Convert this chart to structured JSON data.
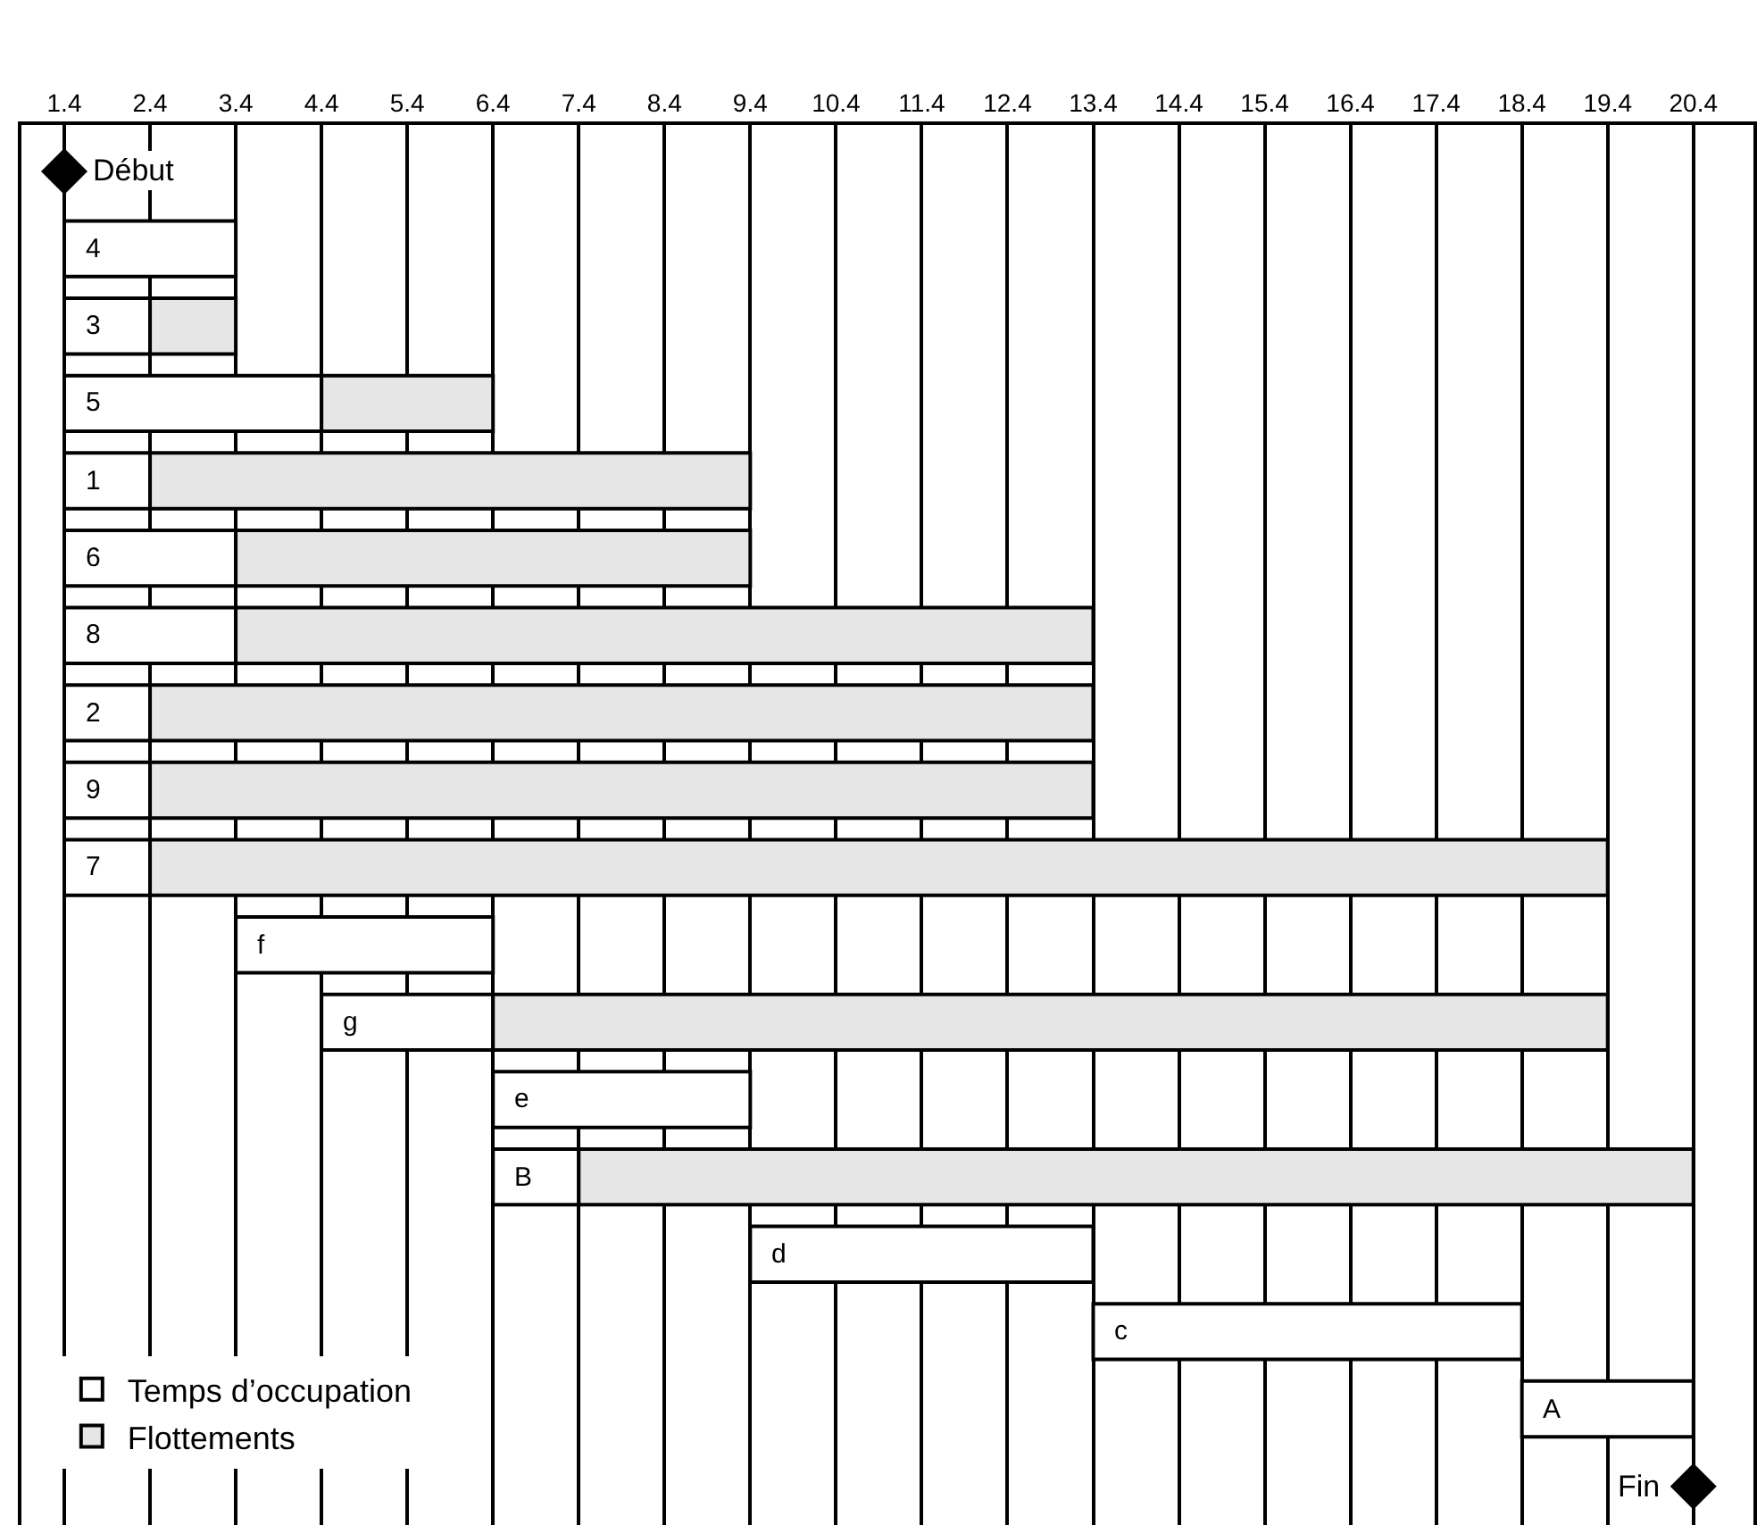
{
  "chart_data": {
    "type": "bar",
    "orientation": "horizontal",
    "categories": [
      "Début",
      "4",
      "3",
      "5",
      "1",
      "6",
      "8",
      "2",
      "9",
      "7",
      "f",
      "g",
      "e",
      "B",
      "d",
      "c",
      "A",
      "Fin"
    ],
    "series": [
      {
        "name": "Temps d’occupation",
        "color": "#ffffff",
        "base": [
          null,
          1.4,
          1.4,
          1.4,
          1.4,
          1.4,
          1.4,
          1.4,
          1.4,
          1.4,
          3.4,
          4.4,
          6.4,
          6.4,
          9.4,
          13.4,
          18.4,
          null
        ],
        "values": [
          null,
          2,
          1,
          3,
          1,
          2,
          2,
          1,
          1,
          1,
          3,
          2,
          3,
          1,
          4,
          5,
          2,
          null
        ]
      },
      {
        "name": "Flottements",
        "color": "#e6e6e6",
        "base": [
          null,
          null,
          2.4,
          4.4,
          2.4,
          3.4,
          3.4,
          2.4,
          2.4,
          2.4,
          null,
          6.4,
          null,
          7.4,
          null,
          null,
          null,
          null
        ],
        "values": [
          null,
          null,
          1,
          2,
          7,
          6,
          10,
          11,
          11,
          17,
          null,
          13,
          null,
          13,
          null,
          null,
          null,
          null
        ]
      },
      {
        "type": "scatter",
        "marker": "diamond",
        "color": "#000000",
        "values": [
          1.4,
          null,
          null,
          null,
          null,
          null,
          null,
          null,
          null,
          null,
          null,
          null,
          null,
          null,
          null,
          null,
          null,
          20.4
        ]
      }
    ],
    "xlim": [
      0.9,
      21.1
    ],
    "xticks": [
      1.4,
      2.4,
      3.4,
      4.4,
      5.4,
      6.4,
      7.4,
      8.4,
      9.4,
      10.4,
      11.4,
      12.4,
      13.4,
      14.4,
      15.4,
      16.4,
      17.4,
      18.4,
      19.4,
      20.4
    ],
    "grid": "x",
    "legend": "bottom left",
    "tick_labels": "x"
  }
}
